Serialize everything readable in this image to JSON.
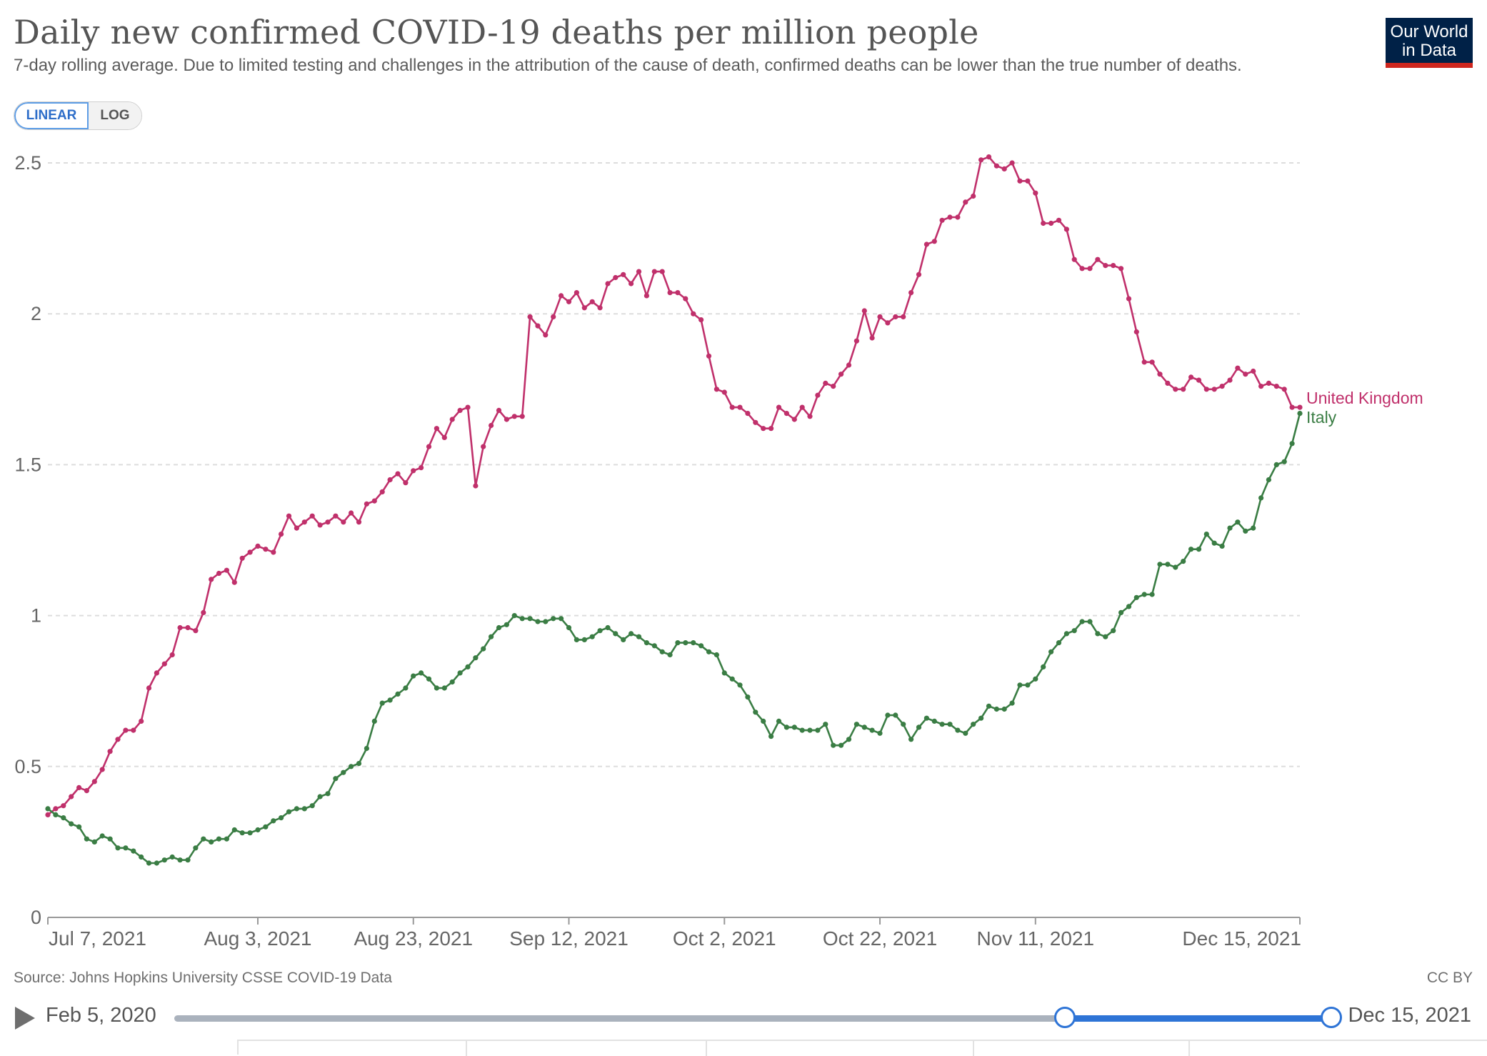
{
  "header": {
    "title": "Daily new confirmed COVID-19 deaths per million people",
    "subtitle": "7-day rolling average. Due to limited testing and challenges in the attribution of the cause of death, confirmed deaths can be lower than the true number of deaths.",
    "logo_line1": "Our World",
    "logo_line2": "in Data"
  },
  "scale_toggle": {
    "linear_label": "LINEAR",
    "log_label": "LOG",
    "selected": "LINEAR"
  },
  "footer": {
    "source": "Source: Johns Hopkins University CSSE COVID-19 Data",
    "license": "CC BY"
  },
  "timeline": {
    "start_label": "Feb 5, 2020",
    "end_label": "Dec 15, 2021",
    "range_start_fraction": 0.77,
    "range_end_fraction": 1.0
  },
  "colors": {
    "united_kingdom": "#c0306b",
    "italy": "#3a7d44",
    "grid": "#dddddd",
    "axis": "#999999"
  },
  "chart_data": {
    "type": "line",
    "title": "Daily new confirmed COVID-19 deaths per million people",
    "xlabel": "",
    "ylabel": "",
    "x_start": "2021-07-07",
    "x_end": "2021-12-15",
    "x_ticks": [
      {
        "date": "2021-07-07",
        "label": "Jul 7, 2021"
      },
      {
        "date": "2021-08-03",
        "label": "Aug 3, 2021"
      },
      {
        "date": "2021-08-23",
        "label": "Aug 23, 2021"
      },
      {
        "date": "2021-09-12",
        "label": "Sep 12, 2021"
      },
      {
        "date": "2021-10-02",
        "label": "Oct 2, 2021"
      },
      {
        "date": "2021-10-22",
        "label": "Oct 22, 2021"
      },
      {
        "date": "2021-11-11",
        "label": "Nov 11, 2021"
      },
      {
        "date": "2021-12-15",
        "label": "Dec 15, 2021"
      }
    ],
    "y_ticks": [
      {
        "value": 0,
        "label": "0"
      },
      {
        "value": 0.5,
        "label": "0.5"
      },
      {
        "value": 1,
        "label": "1"
      },
      {
        "value": 1.5,
        "label": "1.5"
      },
      {
        "value": 2,
        "label": "2"
      },
      {
        "value": 2.5,
        "label": "2.5"
      }
    ],
    "ylim": [
      0,
      2.5
    ],
    "grid": true,
    "legend": "line-end labels",
    "series": [
      {
        "name": "United Kingdom",
        "color": "#c0306b",
        "values": [
          0.34,
          0.36,
          0.37,
          0.4,
          0.43,
          0.42,
          0.45,
          0.49,
          0.55,
          0.59,
          0.62,
          0.62,
          0.65,
          0.76,
          0.81,
          0.84,
          0.87,
          0.96,
          0.96,
          0.95,
          1.01,
          1.12,
          1.14,
          1.15,
          1.11,
          1.19,
          1.21,
          1.23,
          1.22,
          1.21,
          1.27,
          1.33,
          1.29,
          1.31,
          1.33,
          1.3,
          1.31,
          1.33,
          1.31,
          1.34,
          1.31,
          1.37,
          1.38,
          1.41,
          1.45,
          1.47,
          1.44,
          1.48,
          1.49,
          1.56,
          1.62,
          1.59,
          1.65,
          1.68,
          1.69,
          1.43,
          1.56,
          1.63,
          1.68,
          1.65,
          1.66,
          1.66,
          1.99,
          1.96,
          1.93,
          1.99,
          2.06,
          2.04,
          2.07,
          2.02,
          2.04,
          2.02,
          2.1,
          2.12,
          2.13,
          2.1,
          2.14,
          2.06,
          2.14,
          2.14,
          2.07,
          2.07,
          2.05,
          2.0,
          1.98,
          1.86,
          1.75,
          1.74,
          1.69,
          1.69,
          1.67,
          1.64,
          1.62,
          1.62,
          1.69,
          1.67,
          1.65,
          1.69,
          1.66,
          1.73,
          1.77,
          1.76,
          1.8,
          1.83,
          1.91,
          2.01,
          1.92,
          1.99,
          1.97,
          1.99,
          1.99,
          2.07,
          2.13,
          2.23,
          2.24,
          2.31,
          2.32,
          2.32,
          2.37,
          2.39,
          2.51,
          2.52,
          2.49,
          2.48,
          2.5,
          2.44,
          2.44,
          2.4,
          2.3,
          2.3,
          2.31,
          2.28,
          2.18,
          2.15,
          2.15,
          2.18,
          2.16,
          2.16,
          2.15,
          2.05,
          1.94,
          1.84,
          1.84,
          1.8,
          1.77,
          1.75,
          1.75,
          1.79,
          1.78,
          1.75,
          1.75,
          1.76,
          1.78,
          1.82,
          1.8,
          1.81,
          1.76,
          1.77,
          1.76,
          1.75,
          1.69,
          1.69
        ]
      },
      {
        "name": "Italy",
        "color": "#3a7d44",
        "values": [
          0.36,
          0.34,
          0.33,
          0.31,
          0.3,
          0.26,
          0.25,
          0.27,
          0.26,
          0.23,
          0.23,
          0.22,
          0.2,
          0.18,
          0.18,
          0.19,
          0.2,
          0.19,
          0.19,
          0.23,
          0.26,
          0.25,
          0.26,
          0.26,
          0.29,
          0.28,
          0.28,
          0.29,
          0.3,
          0.32,
          0.33,
          0.35,
          0.36,
          0.36,
          0.37,
          0.4,
          0.41,
          0.46,
          0.48,
          0.5,
          0.51,
          0.56,
          0.65,
          0.71,
          0.72,
          0.74,
          0.76,
          0.8,
          0.81,
          0.79,
          0.76,
          0.76,
          0.78,
          0.81,
          0.83,
          0.86,
          0.89,
          0.93,
          0.96,
          0.97,
          1.0,
          0.99,
          0.99,
          0.98,
          0.98,
          0.99,
          0.99,
          0.96,
          0.92,
          0.92,
          0.93,
          0.95,
          0.96,
          0.94,
          0.92,
          0.94,
          0.93,
          0.91,
          0.9,
          0.88,
          0.87,
          0.91,
          0.91,
          0.91,
          0.9,
          0.88,
          0.87,
          0.81,
          0.79,
          0.77,
          0.73,
          0.68,
          0.65,
          0.6,
          0.65,
          0.63,
          0.63,
          0.62,
          0.62,
          0.62,
          0.64,
          0.57,
          0.57,
          0.59,
          0.64,
          0.63,
          0.62,
          0.61,
          0.67,
          0.67,
          0.64,
          0.59,
          0.63,
          0.66,
          0.65,
          0.64,
          0.64,
          0.62,
          0.61,
          0.64,
          0.66,
          0.7,
          0.69,
          0.69,
          0.71,
          0.77,
          0.77,
          0.79,
          0.83,
          0.88,
          0.91,
          0.94,
          0.95,
          0.98,
          0.98,
          0.94,
          0.93,
          0.95,
          1.01,
          1.03,
          1.06,
          1.07,
          1.07,
          1.17,
          1.17,
          1.16,
          1.18,
          1.22,
          1.22,
          1.27,
          1.24,
          1.23,
          1.29,
          1.31,
          1.28,
          1.29,
          1.39,
          1.45,
          1.5,
          1.51,
          1.57,
          1.67
        ]
      }
    ]
  }
}
